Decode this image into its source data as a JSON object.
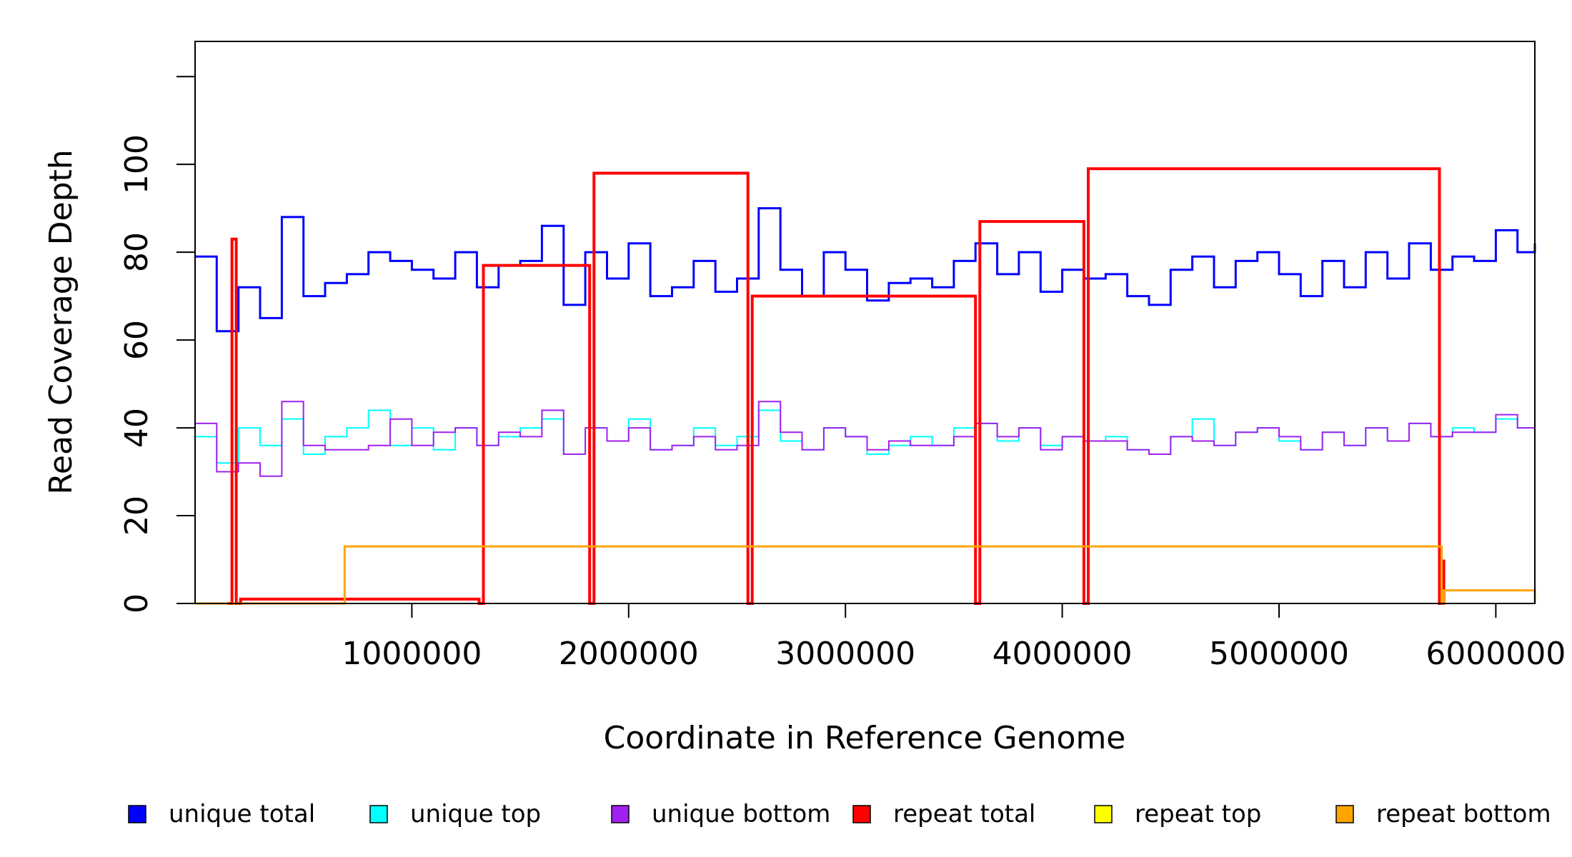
{
  "chart_data": {
    "type": "line",
    "xlabel": "Coordinate in Reference Genome",
    "ylabel": "Read Coverage Depth",
    "xlim": [
      0,
      6180000
    ],
    "ylim": [
      0,
      128
    ],
    "x_ticks": [
      1000000,
      2000000,
      3000000,
      4000000,
      5000000,
      6000000
    ],
    "x_tick_labels": [
      "1000000",
      "2000000",
      "3000000",
      "4000000",
      "5000000",
      "6000000"
    ],
    "y_ticks": [
      0,
      20,
      40,
      60,
      80,
      100,
      120
    ],
    "y_tick_labels": [
      "0",
      "20",
      "40",
      "60",
      "80",
      "100",
      ""
    ],
    "grid": false,
    "legend_position": "bottom",
    "legend": [
      {
        "label": "unique total",
        "color": "#0000ff"
      },
      {
        "label": "unique top",
        "color": "#00ffff"
      },
      {
        "label": "unique bottom",
        "color": "#a020f0"
      },
      {
        "label": "repeat total",
        "color": "#ff0000"
      },
      {
        "label": "repeat top",
        "color": "#ffff00"
      },
      {
        "label": "repeat bottom",
        "color": "#ffa500"
      }
    ],
    "series": [
      {
        "name": "unique total",
        "color": "#0000ff",
        "x": [
          0,
          100000,
          200000,
          300000,
          400000,
          500000,
          600000,
          700000,
          800000,
          900000,
          1000000,
          1100000,
          1200000,
          1300000,
          1400000,
          1500000,
          1600000,
          1700000,
          1800000,
          1900000,
          2000000,
          2100000,
          2200000,
          2300000,
          2400000,
          2500000,
          2600000,
          2700000,
          2800000,
          2900000,
          3000000,
          3100000,
          3200000,
          3300000,
          3400000,
          3500000,
          3600000,
          3700000,
          3800000,
          3900000,
          4000000,
          4100000,
          4200000,
          4300000,
          4400000,
          4500000,
          4600000,
          4700000,
          4800000,
          4900000,
          5000000,
          5100000,
          5200000,
          5300000,
          5400000,
          5500000,
          5600000,
          5700000,
          5800000,
          5900000,
          6000000,
          6100000,
          6180000
        ],
        "y": [
          79,
          62,
          72,
          65,
          88,
          70,
          73,
          75,
          80,
          78,
          76,
          74,
          80,
          72,
          77,
          78,
          86,
          68,
          80,
          74,
          82,
          70,
          72,
          78,
          71,
          74,
          90,
          76,
          70,
          80,
          76,
          69,
          73,
          74,
          72,
          78,
          82,
          75,
          80,
          71,
          76,
          74,
          75,
          70,
          68,
          76,
          79,
          72,
          78,
          80,
          75,
          70,
          78,
          72,
          80,
          74,
          82,
          76,
          79,
          78,
          85,
          80,
          82
        ]
      },
      {
        "name": "unique top",
        "color": "#00ffff",
        "x": [
          0,
          100000,
          200000,
          300000,
          400000,
          500000,
          600000,
          700000,
          800000,
          900000,
          1000000,
          1100000,
          1200000,
          1300000,
          1400000,
          1500000,
          1600000,
          1700000,
          1800000,
          1900000,
          2000000,
          2100000,
          2200000,
          2300000,
          2400000,
          2500000,
          2600000,
          2700000,
          2800000,
          2900000,
          3000000,
          3100000,
          3200000,
          3300000,
          3400000,
          3500000,
          3600000,
          3700000,
          3800000,
          3900000,
          4000000,
          4100000,
          4200000,
          4300000,
          4400000,
          4500000,
          4600000,
          4700000,
          4800000,
          4900000,
          5000000,
          5100000,
          5200000,
          5300000,
          5400000,
          5500000,
          5600000,
          5700000,
          5800000,
          5900000,
          6000000,
          6100000,
          6180000
        ],
        "y": [
          38,
          32,
          40,
          36,
          42,
          34,
          38,
          40,
          44,
          36,
          40,
          35,
          40,
          36,
          38,
          40,
          42,
          34,
          40,
          37,
          42,
          35,
          36,
          40,
          36,
          38,
          44,
          37,
          35,
          40,
          38,
          34,
          36,
          38,
          36,
          40,
          41,
          37,
          40,
          36,
          38,
          37,
          38,
          35,
          34,
          38,
          42,
          36,
          39,
          40,
          37,
          35,
          39,
          36,
          40,
          37,
          41,
          38,
          40,
          39,
          42,
          40,
          41
        ]
      },
      {
        "name": "unique bottom",
        "color": "#a020f0",
        "x": [
          0,
          100000,
          200000,
          300000,
          400000,
          500000,
          600000,
          700000,
          800000,
          900000,
          1000000,
          1100000,
          1200000,
          1300000,
          1400000,
          1500000,
          1600000,
          1700000,
          1800000,
          1900000,
          2000000,
          2100000,
          2200000,
          2300000,
          2400000,
          2500000,
          2600000,
          2700000,
          2800000,
          2900000,
          3000000,
          3100000,
          3200000,
          3300000,
          3400000,
          3500000,
          3600000,
          3700000,
          3800000,
          3900000,
          4000000,
          4100000,
          4200000,
          4300000,
          4400000,
          4500000,
          4600000,
          4700000,
          4800000,
          4900000,
          5000000,
          5100000,
          5200000,
          5300000,
          5400000,
          5500000,
          5600000,
          5700000,
          5800000,
          5900000,
          6000000,
          6100000,
          6180000
        ],
        "y": [
          41,
          30,
          32,
          29,
          46,
          36,
          35,
          35,
          36,
          42,
          36,
          39,
          40,
          36,
          39,
          38,
          44,
          34,
          40,
          37,
          40,
          35,
          36,
          38,
          35,
          36,
          46,
          39,
          35,
          40,
          38,
          35,
          37,
          36,
          36,
          38,
          41,
          38,
          40,
          35,
          38,
          37,
          37,
          35,
          34,
          38,
          37,
          36,
          39,
          40,
          38,
          35,
          39,
          36,
          40,
          37,
          41,
          38,
          39,
          39,
          43,
          40,
          41
        ]
      },
      {
        "name": "repeat total",
        "color": "#ff0000",
        "x": [
          150000,
          170000,
          190000,
          210000,
          1310000,
          1330000,
          1820000,
          1840000,
          2550000,
          2570000,
          3600000,
          3620000,
          4100000,
          4120000,
          5740000,
          5760000
        ],
        "y": [
          0,
          83,
          0,
          1,
          0,
          77,
          0,
          98,
          0,
          70,
          0,
          87,
          0,
          99,
          0,
          10
        ]
      },
      {
        "name": "repeat top",
        "color": "#ffff00",
        "x": [
          0,
          6180000
        ],
        "y": [
          0,
          0
        ]
      },
      {
        "name": "repeat bottom",
        "color": "#ffa500",
        "x": [
          0,
          680000,
          690000,
          5750000,
          5760000,
          6180000
        ],
        "y": [
          0,
          0,
          13,
          0,
          3,
          0
        ]
      }
    ]
  }
}
